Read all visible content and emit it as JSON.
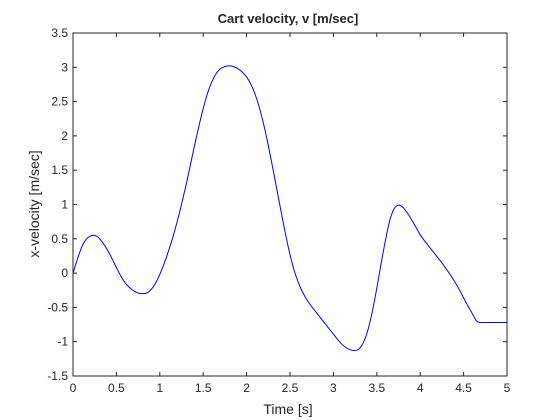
{
  "chart_data": {
    "type": "line",
    "title": "Cart velocity, v [m/sec]",
    "xlabel": "Time [s]",
    "ylabel": "x-velocity [m/sec]",
    "xlim": [
      0,
      5
    ],
    "ylim": [
      -1.5,
      3.5
    ],
    "xticks": [
      0,
      0.5,
      1,
      1.5,
      2,
      2.5,
      3,
      3.5,
      4,
      4.5,
      5
    ],
    "xtick_labels": [
      "0",
      "0.5",
      "1",
      "1.5",
      "2",
      "2.5",
      "3",
      "3.5",
      "4",
      "4.5",
      "5"
    ],
    "yticks": [
      -1.5,
      -1,
      -0.5,
      0,
      0.5,
      1,
      1.5,
      2,
      2.5,
      3,
      3.5
    ],
    "ytick_labels": [
      "-1.5",
      "-1",
      "-0.5",
      "0",
      "0.5",
      "1",
      "1.5",
      "2",
      "2.5",
      "3",
      "3.5"
    ],
    "grid": false,
    "series": [
      {
        "color": "#0000ff",
        "x": [
          0,
          0.05,
          0.1,
          0.15,
          0.2,
          0.25,
          0.3,
          0.35,
          0.4,
          0.45,
          0.5,
          0.55,
          0.6,
          0.65,
          0.7,
          0.75,
          0.8,
          0.85,
          0.9,
          0.95,
          1.0,
          1.05,
          1.1,
          1.15,
          1.2,
          1.25,
          1.3,
          1.35,
          1.4,
          1.45,
          1.5,
          1.55,
          1.6,
          1.65,
          1.7,
          1.75,
          1.8,
          1.85,
          1.9,
          1.95,
          2.0,
          2.05,
          2.1,
          2.15,
          2.2,
          2.25,
          2.3,
          2.35,
          2.4,
          2.45,
          2.5,
          2.55,
          2.6,
          2.65,
          2.7,
          2.75,
          2.8,
          2.85,
          2.9,
          2.95,
          3.0,
          3.05,
          3.1,
          3.15,
          3.2,
          3.25,
          3.3,
          3.35,
          3.4,
          3.45,
          3.5,
          3.55,
          3.6,
          3.65,
          3.7,
          3.75,
          3.8,
          3.85,
          3.9,
          3.95,
          4.0,
          4.05,
          4.1,
          4.15,
          4.2,
          4.25,
          4.3,
          4.35,
          4.4,
          4.45,
          4.5,
          4.55,
          4.6,
          4.65,
          4.7,
          4.75,
          4.8,
          4.85,
          4.9,
          4.95,
          5.0
        ],
        "y": [
          0.0,
          0.2,
          0.38,
          0.49,
          0.54,
          0.55,
          0.51,
          0.43,
          0.33,
          0.21,
          0.08,
          -0.04,
          -0.14,
          -0.21,
          -0.26,
          -0.29,
          -0.3,
          -0.29,
          -0.24,
          -0.15,
          -0.02,
          0.14,
          0.32,
          0.52,
          0.75,
          1.0,
          1.27,
          1.56,
          1.86,
          2.14,
          2.4,
          2.62,
          2.79,
          2.91,
          2.98,
          3.01,
          3.02,
          3.01,
          2.98,
          2.93,
          2.86,
          2.75,
          2.6,
          2.4,
          2.15,
          1.86,
          1.54,
          1.21,
          0.88,
          0.56,
          0.27,
          0.03,
          -0.15,
          -0.29,
          -0.4,
          -0.49,
          -0.57,
          -0.65,
          -0.73,
          -0.81,
          -0.89,
          -0.97,
          -1.04,
          -1.09,
          -1.12,
          -1.13,
          -1.1,
          -1.0,
          -0.82,
          -0.55,
          -0.22,
          0.14,
          0.48,
          0.77,
          0.94,
          0.99,
          0.96,
          0.88,
          0.78,
          0.67,
          0.56,
          0.47,
          0.39,
          0.31,
          0.23,
          0.15,
          0.06,
          -0.03,
          -0.13,
          -0.24,
          -0.36,
          -0.48,
          -0.59,
          -0.7,
          -0.72,
          -0.72,
          -0.72,
          -0.72,
          -0.72,
          -0.72,
          -0.72
        ]
      }
    ]
  }
}
